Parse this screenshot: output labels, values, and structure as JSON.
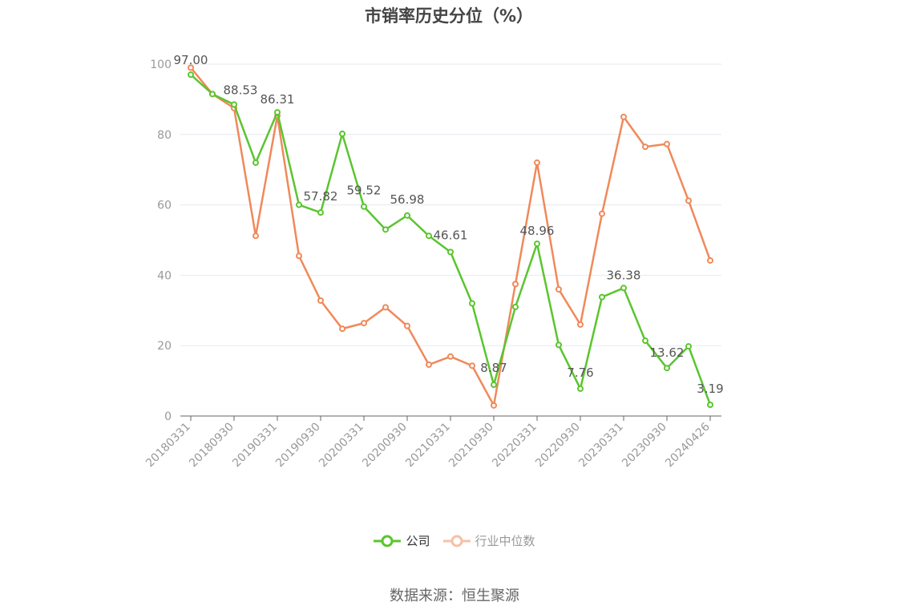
{
  "title": "市销率历史分位（%）",
  "source": "数据来源：恒生聚源",
  "colors": {
    "company": "#5ac52f",
    "industry": "#f0895a",
    "grid": "#e6e9f0",
    "axis": "#666666"
  },
  "chart_data": {
    "type": "line",
    "title": "市销率历史分位（%）",
    "ylim": [
      0,
      100
    ],
    "yticks": [
      0,
      20,
      40,
      60,
      80,
      100
    ],
    "grid": true,
    "legend_position": "bottom-center",
    "x": [
      "20180331",
      "20180630",
      "20180930",
      "20181231",
      "20190331",
      "20190630",
      "20190930",
      "20191231",
      "20200331",
      "20200630",
      "20200930",
      "20201231",
      "20210331",
      "20210630",
      "20210930",
      "20211231",
      "20220331",
      "20220630",
      "20220930",
      "20221231",
      "20230331",
      "20230630",
      "20230930",
      "20231231",
      "20240426"
    ],
    "xtick_labels": [
      "20180331",
      "20180930",
      "20190331",
      "20190930",
      "20200331",
      "20200930",
      "20210331",
      "20210930",
      "20220331",
      "20220930",
      "20230331",
      "20230930",
      "20240426"
    ],
    "series": [
      {
        "name": "公司",
        "color": "#5ac52f",
        "values": [
          97.0,
          91.5,
          88.53,
          72.0,
          86.31,
          60.0,
          57.82,
          80.2,
          59.52,
          53.0,
          56.98,
          51.2,
          46.61,
          32.0,
          8.87,
          31.0,
          48.96,
          20.2,
          7.76,
          33.8,
          36.38,
          21.4,
          13.62,
          19.8,
          3.19
        ]
      },
      {
        "name": "行业中位数",
        "color": "#f0895a",
        "values": [
          99.0,
          91.5,
          87.5,
          51.2,
          85.3,
          45.5,
          32.8,
          24.8,
          26.4,
          30.9,
          25.6,
          14.6,
          16.9,
          14.3,
          3.0,
          37.5,
          72.0,
          36.0,
          26.0,
          57.5,
          85.0,
          76.5,
          77.3,
          61.2,
          44.2
        ]
      }
    ],
    "data_labels": [
      {
        "index": 0,
        "text": "97.00"
      },
      {
        "index": 2,
        "text": "88.53"
      },
      {
        "index": 4,
        "text": "86.31"
      },
      {
        "index": 6,
        "text": "57.82"
      },
      {
        "index": 8,
        "text": "59.52"
      },
      {
        "index": 10,
        "text": "56.98"
      },
      {
        "index": 12,
        "text": "46.61"
      },
      {
        "index": 14,
        "text": "8.87"
      },
      {
        "index": 16,
        "text": "48.96"
      },
      {
        "index": 18,
        "text": "7.76"
      },
      {
        "index": 20,
        "text": "36.38"
      },
      {
        "index": 22,
        "text": "13.62"
      },
      {
        "index": 24,
        "text": "3.19"
      }
    ]
  },
  "legend": [
    {
      "label": "公司",
      "color": "#5ac52f"
    },
    {
      "label": "行业中位数",
      "color": "#f0895a"
    }
  ]
}
